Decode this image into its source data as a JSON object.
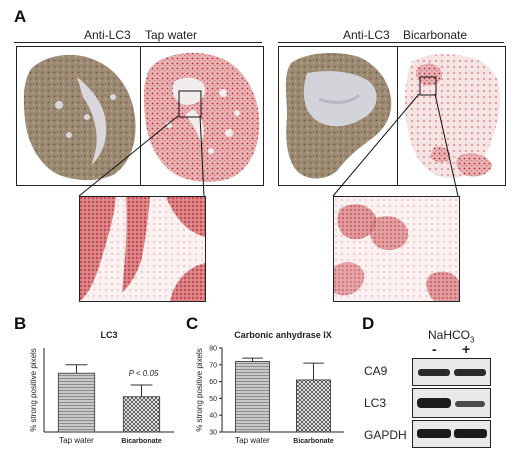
{
  "panel_a": {
    "letter": "A",
    "left_pair": {
      "label_stain": "Anti-LC3",
      "label_condition": "Tap water"
    },
    "right_pair": {
      "label_stain": "Anti-LC3",
      "label_condition": "Bicarbonate"
    }
  },
  "panel_b": {
    "letter": "B"
  },
  "panel_c": {
    "letter": "C"
  },
  "panel_d": {
    "letter": "D",
    "treatment_label": "NaHCO",
    "treatment_subscript": "3",
    "lane_labels": [
      "-",
      "+"
    ],
    "blots": [
      "CA9",
      "LC3",
      "GAPDH"
    ]
  },
  "colors": {
    "stain_brown": "#8a7560",
    "stain_red": "#c0353c",
    "bar_fill": "#b8b8b8"
  },
  "chart_data": [
    {
      "type": "bar",
      "title": "LC3",
      "ylabel": "% strong positive pixels",
      "categories": [
        "Tap water",
        "Bicarbonate"
      ],
      "values": [
        35,
        21
      ],
      "errors": [
        5,
        7
      ],
      "ylim": [
        0,
        50
      ],
      "yticks": [],
      "annotation": "P < 0.05",
      "patterns": [
        "horizontal-stripes",
        "crosshatch"
      ]
    },
    {
      "type": "bar",
      "title": "Carbonic anhydrase IX",
      "ylabel": "% strong positive pixels",
      "categories": [
        "Tap water",
        "Bicarbonate"
      ],
      "values": [
        72,
        61
      ],
      "errors": [
        2,
        10
      ],
      "ylim": [
        30,
        80
      ],
      "yticks": [
        "30",
        "40",
        "50",
        "60",
        "70",
        "80"
      ],
      "patterns": [
        "horizontal-stripes",
        "crosshatch"
      ]
    }
  ]
}
